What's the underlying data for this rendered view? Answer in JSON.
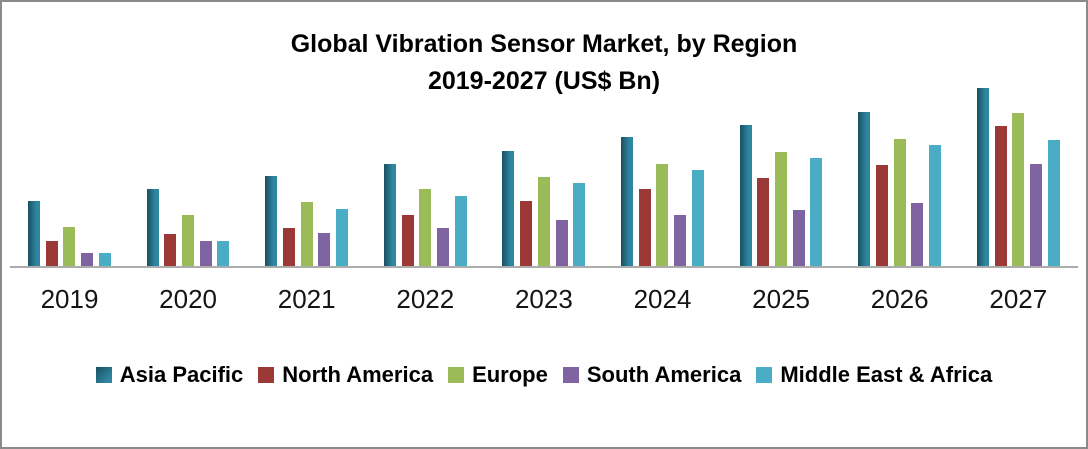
{
  "frame": {
    "border_color": "#8A8A8A",
    "background": "#FFFFFF",
    "axis_line_color": "#ACACAC"
  },
  "chart_data": {
    "type": "bar",
    "title": "Global Vibration Sensor Market, by Region",
    "subtitle": "2019-2027 (US$ Bn)",
    "categories": [
      "2019",
      "2020",
      "2021",
      "2022",
      "2023",
      "2024",
      "2025",
      "2026",
      "2027"
    ],
    "series": [
      {
        "name": "Asia Pacific",
        "color": "#31859C",
        "gradient": [
          "#19505F",
          "#2F86A1"
        ],
        "values": [
          65,
          77,
          90,
          102,
          115,
          129,
          141,
          154,
          178
        ]
      },
      {
        "name": "North America",
        "color": "#9A3936",
        "values": [
          25,
          32,
          38,
          51,
          65,
          77,
          88,
          101,
          140
        ]
      },
      {
        "name": "Europe",
        "color": "#9BBB59",
        "values": [
          39,
          51,
          64,
          77,
          89,
          102,
          114,
          127,
          153
        ]
      },
      {
        "name": "South America",
        "color": "#8064A2",
        "values": [
          13,
          25,
          33,
          38,
          46,
          51,
          56,
          63,
          102
        ]
      },
      {
        "name": "Middle East & Africa",
        "color": "#4BACC6",
        "values": [
          13,
          25,
          57,
          70,
          83,
          96,
          108,
          121,
          126
        ]
      }
    ],
    "xlabel": "",
    "ylabel": "",
    "value_axis_shown": false,
    "values_note": "No y-axis ticks, gridlines or data labels are shown in the chart; series values are relative bar heights read from the image (pixel units).",
    "ylim": [
      0,
      200
    ],
    "grid": false,
    "legend_position": "bottom"
  }
}
